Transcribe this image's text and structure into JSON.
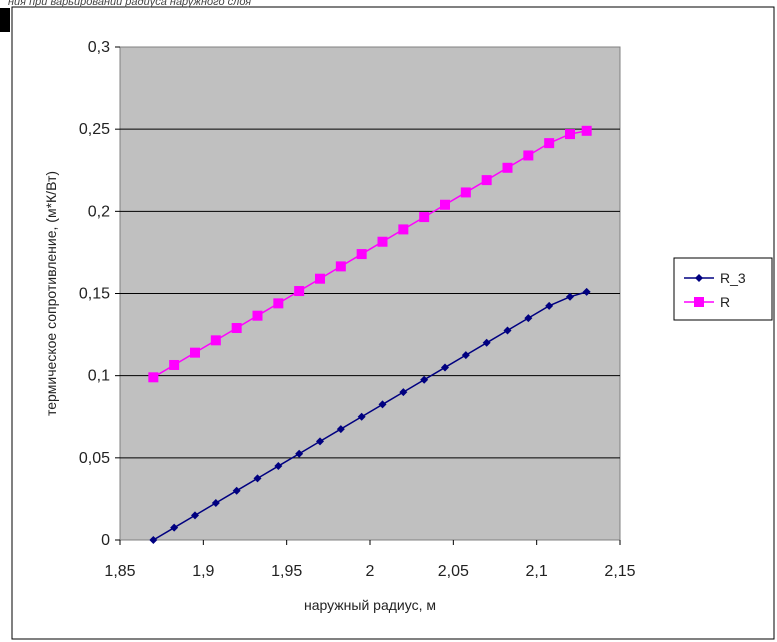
{
  "caption_fragment": "ния при варьировании радиуса наружного слоя",
  "chart_data": {
    "type": "line",
    "xlabel": "наружный радиус, м",
    "ylabel": "термическое сопротивление, (м*К/Вт)",
    "xlim": [
      1.85,
      2.15
    ],
    "ylim": [
      0,
      0.3
    ],
    "x_ticks": [
      "1,85",
      "1,9",
      "1,95",
      "2",
      "2,05",
      "2,1",
      "2,15"
    ],
    "y_ticks": [
      "0",
      "0,05",
      "0,1",
      "0,15",
      "0,2",
      "0,25",
      "0,3"
    ],
    "grid": "horizontal",
    "legend_position": "right",
    "plot_background": "#c0c0c0",
    "x": [
      1.87,
      1.8825,
      1.895,
      1.9075,
      1.92,
      1.9325,
      1.945,
      1.9575,
      1.97,
      1.9825,
      1.995,
      2.0075,
      2.02,
      2.0325,
      2.045,
      2.0575,
      2.07,
      2.0825,
      2.095,
      2.1075,
      2.12,
      2.13
    ],
    "series": [
      {
        "name": "R_3",
        "color": "#000080",
        "marker": "diamond",
        "values": [
          0.0,
          0.0075,
          0.015,
          0.0225,
          0.03,
          0.0375,
          0.045,
          0.0525,
          0.06,
          0.0675,
          0.075,
          0.0825,
          0.09,
          0.0975,
          0.105,
          0.1125,
          0.12,
          0.1275,
          0.135,
          0.1425,
          0.148,
          0.151
        ]
      },
      {
        "name": "R",
        "color": "#ff00ff",
        "marker": "square",
        "values": [
          0.099,
          0.1065,
          0.114,
          0.1215,
          0.129,
          0.1365,
          0.144,
          0.1515,
          0.159,
          0.1665,
          0.174,
          0.1815,
          0.189,
          0.1965,
          0.204,
          0.2115,
          0.219,
          0.2265,
          0.234,
          0.2415,
          0.247,
          0.249
        ]
      }
    ]
  }
}
